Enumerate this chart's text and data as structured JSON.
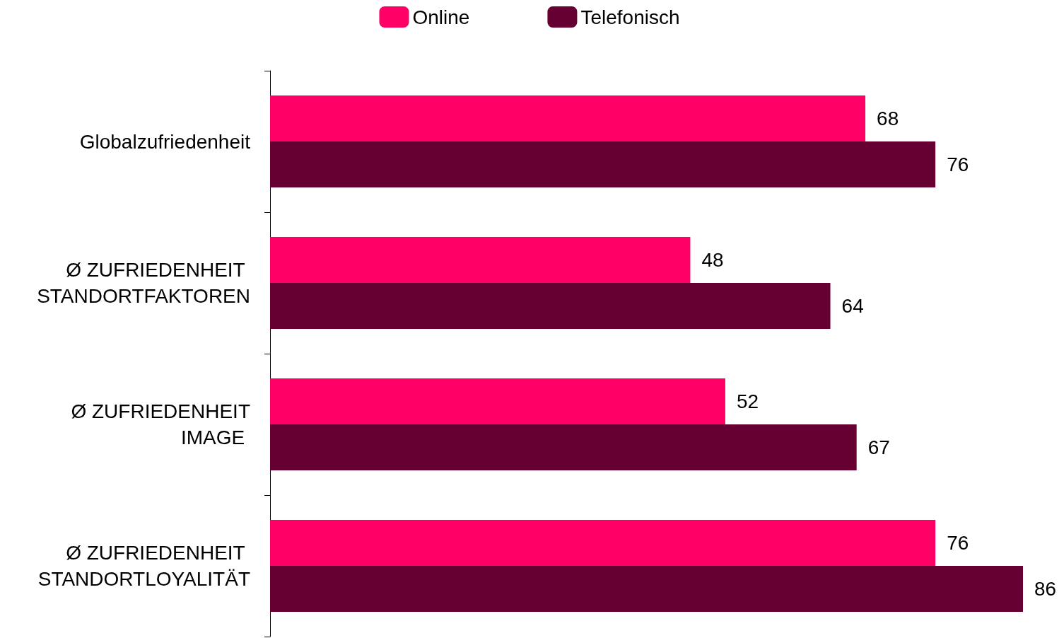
{
  "chart_data": {
    "type": "bar",
    "orientation": "horizontal",
    "categories": [
      "Globalzufriedenheit",
      "Ø ZUFRIEDENHEIT \nSTANDORTFAKTOREN",
      "Ø ZUFRIEDENHEIT\nIMAGE ",
      "Ø ZUFRIEDENHEIT \nSTANDORTLOYALITÄT"
    ],
    "series": [
      {
        "name": "Online",
        "color": "#ff0066",
        "values": [
          68,
          48,
          52,
          76
        ]
      },
      {
        "name": "Telefonisch",
        "color": "#660033",
        "values": [
          76,
          64,
          67,
          86
        ]
      }
    ],
    "data_labels": true,
    "legend": "top",
    "tick_labels": "y"
  }
}
